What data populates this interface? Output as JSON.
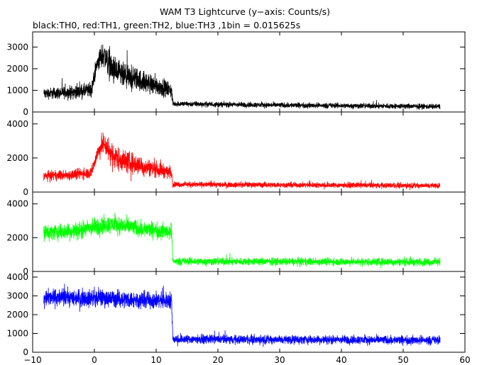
{
  "chart_data": {
    "type": "line",
    "title": "WAM T3 Lightcurve (y−axis: Counts/s)",
    "subtitle": "black:TH0, red:TH1, green:TH2, blue:TH3 ,1bin = 0.015625s",
    "xlabel": "",
    "ylabel": "",
    "xlim": [
      -10,
      60
    ],
    "x_ticks": [
      -10,
      0,
      10,
      20,
      30,
      40,
      50,
      60
    ],
    "x_tick_labels": [
      "−10",
      "0",
      "10",
      "20",
      "30",
      "40",
      "50",
      "60"
    ],
    "x_start": -8.2,
    "x_end": 56.0,
    "burst_end": 12.6,
    "panels": [
      {
        "name": "TH0",
        "color": "#000000",
        "ylim": [
          0,
          3700
        ],
        "y_ticks": [
          0,
          1000,
          2000,
          3000
        ],
        "y_tick_labels": [
          "0",
          "1000",
          "2000",
          "3000"
        ],
        "profile": [
          {
            "x": -8.2,
            "y": 850
          },
          {
            "x": -4,
            "y": 900
          },
          {
            "x": -0.5,
            "y": 1000
          },
          {
            "x": 0.5,
            "y": 2300
          },
          {
            "x": 1.5,
            "y": 2700
          },
          {
            "x": 3,
            "y": 1900
          },
          {
            "x": 5,
            "y": 1600
          },
          {
            "x": 7,
            "y": 1500
          },
          {
            "x": 9,
            "y": 1300
          },
          {
            "x": 12.5,
            "y": 1000
          },
          {
            "x": 12.7,
            "y": 380
          },
          {
            "x": 25,
            "y": 330
          },
          {
            "x": 56,
            "y": 250
          }
        ],
        "amplitude": [
          {
            "x": -8.2,
            "y": 350
          },
          {
            "x": 0,
            "y": 500
          },
          {
            "x": 2,
            "y": 1000
          },
          {
            "x": 6,
            "y": 800
          },
          {
            "x": 12.5,
            "y": 500
          },
          {
            "x": 12.7,
            "y": 170
          },
          {
            "x": 56,
            "y": 170
          }
        ]
      },
      {
        "name": "TH1",
        "color": "#ff0000",
        "ylim": [
          0,
          4700
        ],
        "y_ticks": [
          0,
          2000,
          4000
        ],
        "y_tick_labels": [
          "0",
          "2000",
          "4000"
        ],
        "profile": [
          {
            "x": -8.2,
            "y": 950
          },
          {
            "x": -4,
            "y": 1000
          },
          {
            "x": -0.5,
            "y": 1150
          },
          {
            "x": 0.5,
            "y": 2300
          },
          {
            "x": 1.5,
            "y": 2900
          },
          {
            "x": 3,
            "y": 2100
          },
          {
            "x": 5,
            "y": 1800
          },
          {
            "x": 8,
            "y": 1500
          },
          {
            "x": 12.5,
            "y": 1150
          },
          {
            "x": 12.7,
            "y": 450
          },
          {
            "x": 56,
            "y": 380
          }
        ],
        "amplitude": [
          {
            "x": -8.2,
            "y": 380
          },
          {
            "x": 0,
            "y": 500
          },
          {
            "x": 2,
            "y": 1100
          },
          {
            "x": 6,
            "y": 900
          },
          {
            "x": 12.5,
            "y": 500
          },
          {
            "x": 12.7,
            "y": 220
          },
          {
            "x": 56,
            "y": 220
          }
        ]
      },
      {
        "name": "TH2",
        "color": "#00ff00",
        "ylim": [
          0,
          4700
        ],
        "y_ticks": [
          0,
          2000,
          4000
        ],
        "y_tick_labels": [
          "0",
          "2000",
          "4000"
        ],
        "profile": [
          {
            "x": -8.2,
            "y": 2300
          },
          {
            "x": -3,
            "y": 2400
          },
          {
            "x": 1,
            "y": 2700
          },
          {
            "x": 3,
            "y": 2800
          },
          {
            "x": 8,
            "y": 2500
          },
          {
            "x": 12.5,
            "y": 2350
          },
          {
            "x": 12.7,
            "y": 600
          },
          {
            "x": 56,
            "y": 560
          }
        ],
        "amplitude": [
          {
            "x": -8.2,
            "y": 650
          },
          {
            "x": 1,
            "y": 800
          },
          {
            "x": 4,
            "y": 750
          },
          {
            "x": 12.5,
            "y": 650
          },
          {
            "x": 12.7,
            "y": 320
          },
          {
            "x": 56,
            "y": 320
          }
        ]
      },
      {
        "name": "TH3",
        "color": "#0000ff",
        "ylim": [
          0,
          4300
        ],
        "y_ticks": [
          0,
          1000,
          2000,
          3000,
          4000
        ],
        "y_tick_labels": [
          "0",
          "1000",
          "2000",
          "3000",
          "4000"
        ],
        "profile": [
          {
            "x": -8.2,
            "y": 2900
          },
          {
            "x": 0,
            "y": 2900
          },
          {
            "x": 6,
            "y": 2800
          },
          {
            "x": 12.5,
            "y": 2750
          },
          {
            "x": 12.7,
            "y": 700
          },
          {
            "x": 56,
            "y": 640
          }
        ],
        "amplitude": [
          {
            "x": -8.2,
            "y": 650
          },
          {
            "x": 12.5,
            "y": 650
          },
          {
            "x": 12.7,
            "y": 330
          },
          {
            "x": 56,
            "y": 330
          }
        ]
      }
    ]
  }
}
